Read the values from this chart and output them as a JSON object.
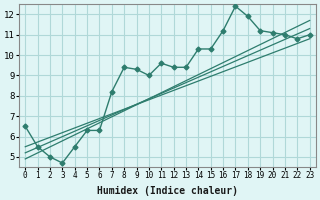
{
  "xlabel": "Humidex (Indice chaleur)",
  "ylabel": "",
  "bg_color": "#e0f5f5",
  "grid_color": "#b0d8d8",
  "line_color": "#2e7d6e",
  "xlim": [
    -0.5,
    23.5
  ],
  "ylim": [
    4.5,
    12.5
  ],
  "xticks": [
    0,
    1,
    2,
    3,
    4,
    5,
    6,
    7,
    8,
    9,
    10,
    11,
    12,
    13,
    14,
    15,
    16,
    17,
    18,
    19,
    20,
    21,
    22,
    23
  ],
  "yticks": [
    5,
    6,
    7,
    8,
    9,
    10,
    11,
    12
  ],
  "main_x": [
    0,
    1,
    2,
    3,
    4,
    5,
    6,
    7,
    8,
    9,
    10,
    11,
    12,
    13,
    14,
    15,
    16,
    17,
    18,
    19,
    20,
    21,
    22,
    23
  ],
  "main_y": [
    6.5,
    5.5,
    5.0,
    4.7,
    5.5,
    6.3,
    6.3,
    8.2,
    9.4,
    9.3,
    9.0,
    9.6,
    9.4,
    9.4,
    10.3,
    10.3,
    11.2,
    12.4,
    11.9,
    11.2,
    11.1,
    11.0,
    10.8,
    11.0
  ],
  "line1_x": [
    0,
    23
  ],
  "line1_y": [
    5.5,
    10.8
  ],
  "line2_x": [
    0,
    23
  ],
  "line2_y": [
    5.2,
    11.3
  ],
  "line3_x": [
    0,
    23
  ],
  "line3_y": [
    4.9,
    11.7
  ]
}
